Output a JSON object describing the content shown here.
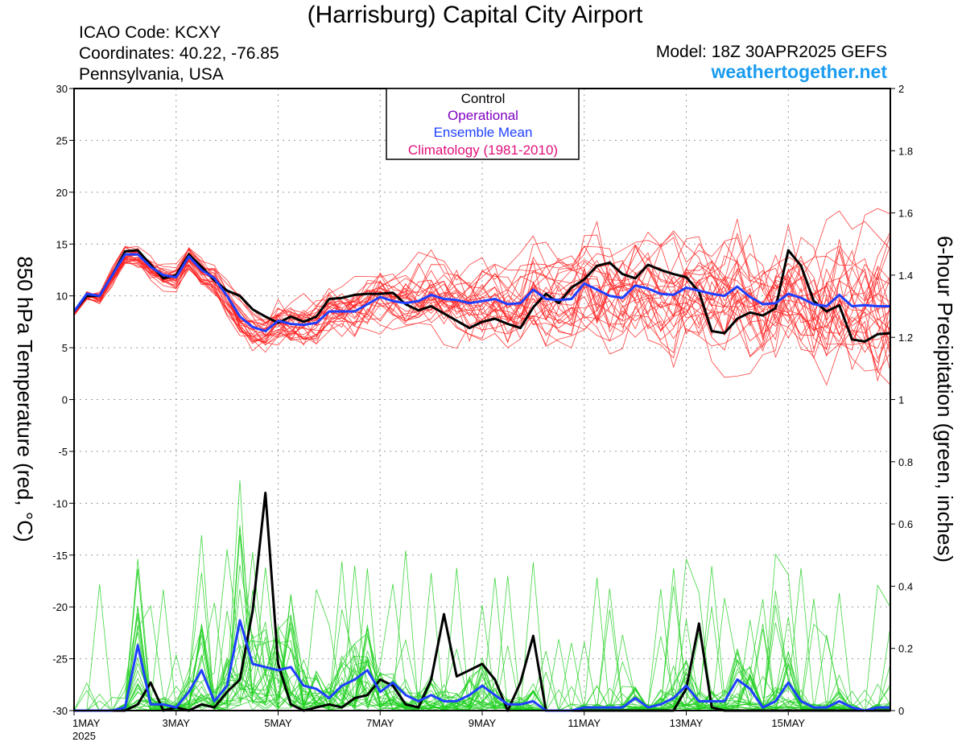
{
  "header": {
    "title": "(Harrisburg) Capital City Airport",
    "icao": "ICAO Code: KCXY",
    "coordinates": "Coordinates: 40.22, -76.85",
    "location": "Pennsylvania, USA",
    "model": "Model: 18Z 30APR2025 GEFS",
    "website": "weathertogether.net"
  },
  "colors": {
    "control": "#000000",
    "operational": "#8000c0",
    "ensemble_mean": "#1f3fff",
    "climatology": "#e0107a",
    "member_temp": "#ff2020",
    "member_precip": "#20d020",
    "website": "#1a9cf0"
  },
  "legend": {
    "items": [
      {
        "label": "Control",
        "color": "#000000"
      },
      {
        "label": "Operational",
        "color": "#8000c0"
      },
      {
        "label": "Ensemble Mean",
        "color": "#1f3fff"
      },
      {
        "label": "Climatology (1981-2010)",
        "color": "#e0107a"
      }
    ]
  },
  "chart_data": {
    "type": "line",
    "title": "(Harrisburg) Capital City Airport",
    "ylabel": "850 hPa Temperature (red, °C)",
    "ylabel_right": "6-hour Precipitation (green, inches)",
    "ylim": [
      -30,
      30
    ],
    "ylim_right": [
      0,
      2
    ],
    "y_ticks": [
      30,
      25,
      20,
      15,
      10,
      5,
      0,
      -5,
      -10,
      -15,
      -20,
      -25,
      -30
    ],
    "y_ticks_right": [
      "2",
      "1.8",
      "1.6",
      "1.4",
      "1.2",
      "1",
      "0.8",
      "0.6",
      "0.4",
      "0.2",
      "0"
    ],
    "x_range_days": [
      1,
      17
    ],
    "x_ticks": [
      {
        "label": "1MAY",
        "sub": "2025",
        "day": 1
      },
      {
        "label": "3MAY",
        "sub": "",
        "day": 3
      },
      {
        "label": "5MAY",
        "sub": "",
        "day": 5
      },
      {
        "label": "7MAY",
        "sub": "",
        "day": 7
      },
      {
        "label": "9MAY",
        "sub": "",
        "day": 9
      },
      {
        "label": "11MAY",
        "sub": "",
        "day": 11
      },
      {
        "label": "13MAY",
        "sub": "",
        "day": 13
      },
      {
        "label": "15MAY",
        "sub": "",
        "day": 15
      }
    ],
    "grid": true,
    "series": [
      {
        "name": "Control",
        "axis": "left",
        "color": "#000000",
        "x": [
          1.0,
          1.25,
          1.5,
          1.75,
          2.0,
          2.25,
          2.5,
          2.75,
          3.0,
          3.25,
          3.5,
          3.75,
          4.0,
          4.25,
          4.5,
          4.75,
          5.0,
          5.25,
          5.5,
          5.75,
          6.0,
          6.25,
          6.5,
          6.75,
          7.0,
          7.25,
          7.5,
          7.75,
          8.0,
          8.25,
          8.5,
          8.75,
          9.0,
          9.25,
          9.5,
          9.75,
          10.0,
          10.25,
          10.5,
          10.75,
          11.0,
          11.25,
          11.5,
          11.75,
          12.0,
          12.25,
          12.5,
          12.75,
          13.0,
          13.25,
          13.5,
          13.75,
          14.0,
          14.25,
          14.5,
          14.75,
          15.0,
          15.25,
          15.5,
          15.75,
          16.0,
          16.25,
          16.5,
          16.75,
          17.0
        ],
        "values": [
          8.5,
          10.0,
          10.0,
          12.0,
          14.3,
          14.4,
          13.0,
          11.7,
          12.0,
          14.0,
          12.8,
          11.5,
          10.5,
          10.0,
          8.7,
          8.0,
          7.4,
          8.0,
          7.5,
          8.0,
          9.7,
          9.8,
          10.1,
          10.2,
          10.2,
          10.3,
          9.2,
          8.6,
          9.0,
          8.3,
          7.6,
          6.9,
          7.5,
          7.8,
          7.3,
          6.9,
          8.9,
          10.2,
          9.3,
          10.8,
          11.6,
          12.9,
          13.2,
          12.1,
          11.7,
          13.0,
          12.5,
          12.1,
          11.8,
          10.4,
          6.6,
          6.4,
          7.8,
          8.4,
          8.1,
          8.8,
          14.4,
          12.9,
          9.5,
          8.5,
          9.1,
          5.8,
          5.6,
          6.3,
          6.4
        ]
      },
      {
        "name": "Ensemble Mean",
        "axis": "left",
        "color": "#1f3fff",
        "x": [
          1.0,
          1.25,
          1.5,
          1.75,
          2.0,
          2.25,
          2.5,
          2.75,
          3.0,
          3.25,
          3.5,
          3.75,
          4.0,
          4.25,
          4.5,
          4.75,
          5.0,
          5.25,
          5.5,
          5.75,
          6.0,
          6.25,
          6.5,
          6.75,
          7.0,
          7.25,
          7.5,
          7.75,
          8.0,
          8.25,
          8.5,
          8.75,
          9.0,
          9.25,
          9.5,
          9.75,
          10.0,
          10.25,
          10.5,
          10.75,
          11.0,
          11.25,
          11.5,
          11.75,
          12.0,
          12.25,
          12.5,
          12.75,
          13.0,
          13.25,
          13.5,
          13.75,
          14.0,
          14.25,
          14.5,
          14.75,
          15.0,
          15.25,
          15.5,
          15.75,
          16.0,
          16.25,
          16.5,
          16.75,
          17.0
        ],
        "values": [
          8.5,
          10.2,
          10.0,
          12.0,
          14.0,
          14.0,
          12.8,
          12.0,
          11.8,
          13.8,
          12.5,
          11.7,
          10.0,
          8.0,
          7.0,
          6.6,
          7.6,
          7.3,
          7.2,
          7.4,
          8.5,
          8.5,
          8.5,
          9.2,
          9.9,
          9.5,
          9.3,
          9.5,
          10.1,
          9.7,
          9.6,
          9.3,
          9.5,
          9.7,
          9.2,
          9.3,
          10.6,
          9.7,
          9.6,
          9.7,
          11.2,
          10.6,
          10.0,
          9.8,
          11.0,
          10.7,
          10.2,
          10.1,
          10.8,
          10.5,
          10.2,
          10.0,
          10.9,
          9.9,
          9.2,
          9.3,
          10.2,
          9.8,
          9.2,
          9.0,
          10.1,
          9.0,
          9.1,
          9.0,
          9.0
        ]
      },
      {
        "name": "Control",
        "axis": "right",
        "color": "#000000",
        "x": [
          1.0,
          1.25,
          1.5,
          1.75,
          2.0,
          2.25,
          2.5,
          2.75,
          3.0,
          3.25,
          3.5,
          3.75,
          4.0,
          4.25,
          4.5,
          4.75,
          5.0,
          5.25,
          5.5,
          5.75,
          6.0,
          6.25,
          6.5,
          6.75,
          7.0,
          7.25,
          7.5,
          7.75,
          8.0,
          8.25,
          8.5,
          8.75,
          9.0,
          9.25,
          9.5,
          9.75,
          10.0,
          10.25,
          10.5,
          10.75,
          11.0,
          11.25,
          11.5,
          11.75,
          12.0,
          12.25,
          12.5,
          12.75,
          13.0,
          13.25,
          13.5,
          13.75,
          14.0,
          14.25,
          14.5,
          14.75,
          15.0,
          15.25,
          15.5,
          15.75,
          16.0,
          16.25,
          16.5,
          16.75,
          17.0
        ],
        "values": [
          0,
          0,
          0,
          0,
          0,
          0.02,
          0.09,
          0.0,
          0.01,
          0.0,
          0.02,
          0.01,
          0.06,
          0.1,
          0.32,
          0.7,
          0.15,
          0.02,
          0.0,
          0.01,
          0.02,
          0.01,
          0.04,
          0.05,
          0.1,
          0.08,
          0.02,
          0.01,
          0.1,
          0.31,
          0.11,
          0.13,
          0.15,
          0.1,
          0.0,
          0.09,
          0.24,
          0.0,
          0.0,
          0.0,
          0.0,
          0.0,
          0.0,
          0.0,
          0.0,
          0.0,
          0.0,
          0.0,
          0.07,
          0.28,
          0.01,
          0.0,
          0.0,
          0.0,
          0.0,
          0.0,
          0.0,
          0.0,
          0.0,
          0.0,
          0.0,
          0.0,
          0.0,
          0.0,
          0.0
        ]
      },
      {
        "name": "Ensemble Mean",
        "axis": "right",
        "color": "#1f3fff",
        "x": [
          1.0,
          1.25,
          1.5,
          1.75,
          2.0,
          2.25,
          2.5,
          2.75,
          3.0,
          3.25,
          3.5,
          3.75,
          4.0,
          4.25,
          4.5,
          4.75,
          5.0,
          5.25,
          5.5,
          5.75,
          6.0,
          6.25,
          6.5,
          6.75,
          7.0,
          7.25,
          7.5,
          7.75,
          8.0,
          8.25,
          8.5,
          8.75,
          9.0,
          9.25,
          9.5,
          9.75,
          10.0,
          10.25,
          10.5,
          10.75,
          11.0,
          11.25,
          11.5,
          11.75,
          12.0,
          12.25,
          12.5,
          12.75,
          13.0,
          13.25,
          13.5,
          13.75,
          14.0,
          14.25,
          14.5,
          14.75,
          15.0,
          15.25,
          15.5,
          15.75,
          16.0,
          16.25,
          16.5,
          16.75,
          17.0
        ],
        "values": [
          0,
          0,
          0,
          0,
          0.01,
          0.21,
          0.02,
          0.02,
          0.01,
          0.06,
          0.13,
          0.03,
          0.08,
          0.29,
          0.15,
          0.14,
          0.13,
          0.14,
          0.08,
          0.07,
          0.04,
          0.08,
          0.1,
          0.13,
          0.06,
          0.09,
          0.05,
          0.03,
          0.05,
          0.03,
          0.03,
          0.05,
          0.08,
          0.05,
          0.02,
          0.02,
          0.03,
          0.0,
          0.0,
          0.0,
          0.01,
          0.01,
          0.01,
          0.01,
          0.04,
          0.01,
          0.02,
          0.04,
          0.08,
          0.03,
          0.03,
          0.03,
          0.1,
          0.07,
          0.01,
          0.03,
          0.09,
          0.03,
          0.01,
          0.01,
          0.03,
          0.01,
          0.0,
          0.01,
          0.01
        ]
      }
    ]
  }
}
